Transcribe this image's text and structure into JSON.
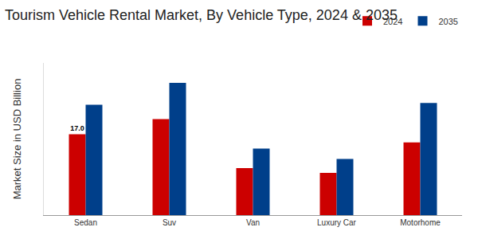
{
  "chart_data": {
    "type": "bar",
    "title": "Tourism Vehicle Rental Market, By Vehicle Type, 2024 & 2035",
    "y_label": "Market Size in USD Billion",
    "categories": [
      "Sedan",
      "Suv",
      "Van",
      "Luxury Car",
      "Motorhome"
    ],
    "series": [
      {
        "name": "2024",
        "color": "#cc0000",
        "values": [
          17.0,
          20.2,
          9.9,
          8.9,
          15.3
        ],
        "data_labels": true,
        "value_labels": [
          "17.0",
          null,
          null,
          null,
          null
        ]
      },
      {
        "name": "2035",
        "color": "#003f8a",
        "values": [
          23.2,
          27.8,
          14.0,
          11.8,
          23.6
        ]
      }
    ],
    "ylim": [
      0,
      32
    ],
    "tick_labels": "x",
    "grid": false,
    "legend": "top right"
  }
}
